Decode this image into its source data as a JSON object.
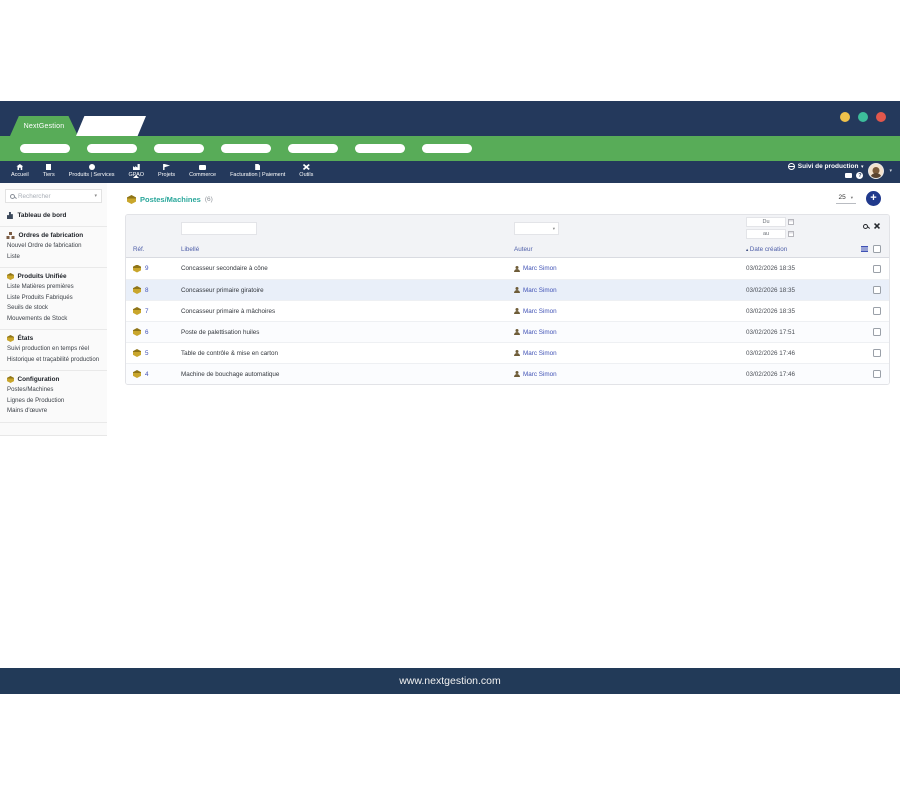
{
  "colors": {
    "navy": "#24395c",
    "green": "#58ac58",
    "title_teal": "#2aa79b",
    "link_blue": "#3f51b5",
    "package_gold": "#c9a62c",
    "add_button_blue": "#20398c",
    "dot_yellow": "#f0c24b",
    "dot_green": "#3dbd9b",
    "dot_red": "#e2574c",
    "highlight_row": "#e9eff9"
  },
  "window": {
    "brand": "NextGestion"
  },
  "navbar": {
    "items": [
      {
        "icon": "home-icon",
        "label": "Accueil",
        "active": false
      },
      {
        "icon": "building-icon",
        "label": "Tiers",
        "active": false
      },
      {
        "icon": "globe-icon",
        "label": "Produits | Services",
        "active": false
      },
      {
        "icon": "factory-icon",
        "label": "GPAO",
        "active": true
      },
      {
        "icon": "flag-icon",
        "label": "Projets",
        "active": false
      },
      {
        "icon": "briefcase-icon",
        "label": "Commerce",
        "active": false
      },
      {
        "icon": "invoice-icon",
        "label": "Facturation | Paiement",
        "active": false
      },
      {
        "icon": "tools-icon",
        "label": "Outils",
        "active": false
      }
    ],
    "module_label": "Suivi de production"
  },
  "sidebar": {
    "search_placeholder": "Rechercher",
    "sections": [
      {
        "header": "Tableau de bord",
        "icon": "chart-icon",
        "items": []
      },
      {
        "header": "Ordres de fabrication",
        "icon": "sitemap-icon",
        "items": [
          "Nouvel Ordre de fabrication",
          "Liste"
        ]
      },
      {
        "header": "Produits Unifiée",
        "icon": "package-icon",
        "items": [
          "Liste Matières premières",
          "Liste Produits Fabriqués",
          "Seuils de stock",
          "Mouvements de Stock"
        ]
      },
      {
        "header": "États",
        "icon": "package-icon",
        "items": [
          "Suivi production en temps réel",
          "Historique et traçabilité production"
        ]
      },
      {
        "header": "Configuration",
        "icon": "package-icon",
        "items": [
          "Postes/Machines",
          "Lignes de Production",
          "Mains d'œuvre"
        ]
      }
    ]
  },
  "main": {
    "title": "Postes/Machines",
    "count": "(6)",
    "page_size": "25",
    "add_label": "+"
  },
  "table": {
    "columns": [
      "Réf.",
      "Libellé",
      "Auteur",
      "Date création"
    ],
    "sort_column": "Date création",
    "sort_indicator": "▴",
    "filters": {
      "date_from_label": "Du",
      "date_to_label": "au"
    },
    "rows": [
      {
        "ref": "9",
        "libelle": "Concasseur secondaire à cône",
        "auteur": "Marc Simon",
        "date": "03/02/2026 18:35",
        "highlighted": false
      },
      {
        "ref": "8",
        "libelle": "Concasseur primaire giratoire",
        "auteur": "Marc Simon",
        "date": "03/02/2026 18:35",
        "highlighted": true
      },
      {
        "ref": "7",
        "libelle": "Concasseur primaire à mâchoires",
        "auteur": "Marc Simon",
        "date": "03/02/2026 18:35",
        "highlighted": false
      },
      {
        "ref": "6",
        "libelle": "Poste de palettisation huiles",
        "auteur": "Marc Simon",
        "date": "03/02/2026 17:51",
        "highlighted": false
      },
      {
        "ref": "5",
        "libelle": "Table de contrôle & mise en carton",
        "auteur": "Marc Simon",
        "date": "03/02/2026 17:46",
        "highlighted": false
      },
      {
        "ref": "4",
        "libelle": "Machine de bouchage automatique",
        "auteur": "Marc Simon",
        "date": "03/02/2026 17:46",
        "highlighted": false
      }
    ]
  },
  "footer": {
    "url": "www.nextgestion.com"
  }
}
